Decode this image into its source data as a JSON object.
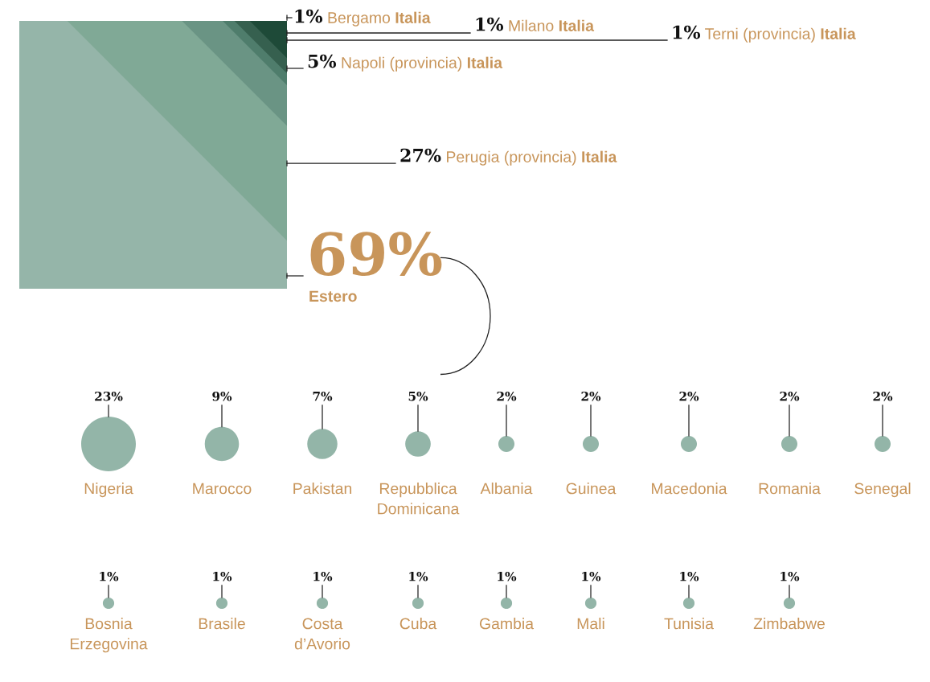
{
  "chart_data": [
    {
      "type": "other",
      "categories": [
        "Bergamo",
        "Milano",
        "Terni (provincia)",
        "Napoli (provincia)",
        "Perugia (provincia)",
        "Estero"
      ],
      "series": [
        {
          "name": "Italia",
          "values": [
            1,
            1,
            1,
            5,
            27,
            null
          ],
          "value_labels": [
            "1%",
            "1%",
            "1%",
            "5%",
            "27%",
            null
          ],
          "colors": [
            "#1e4a38",
            "#36604f",
            "#4f7d6c",
            "#6a9484",
            "#80a996",
            null
          ]
        },
        {
          "values": [
            null,
            null,
            null,
            null,
            null,
            69
          ],
          "value_labels": [
            null,
            null,
            null,
            null,
            null,
            "69%"
          ],
          "colors": [
            null,
            null,
            null,
            null,
            null,
            "#95b5a9"
          ]
        }
      ]
    },
    {
      "type": "other",
      "categories": [
        "Nigeria",
        "Marocco",
        "Pakistan",
        "Repubblica Dominicana",
        "Albania",
        "Guinea",
        "Macedonia",
        "Romania",
        "Senegal",
        "Bosnia Erzegovina",
        "Brasile",
        "Costa d’Avorio",
        "Cuba",
        "Gambia",
        "Mali",
        "Tunisia",
        "Zimbabwe"
      ],
      "values": [
        23,
        9,
        7,
        5,
        2,
        2,
        2,
        2,
        2,
        1,
        1,
        1,
        1,
        1,
        1,
        1,
        1
      ],
      "value_labels": [
        "23%",
        "9%",
        "7%",
        "5%",
        "2%",
        "2%",
        "2%",
        "2%",
        "2%",
        "1%",
        "1%",
        "1%",
        "1%",
        "1%",
        "1%",
        "1%",
        "1%"
      ],
      "color": "#93b5a8"
    }
  ]
}
